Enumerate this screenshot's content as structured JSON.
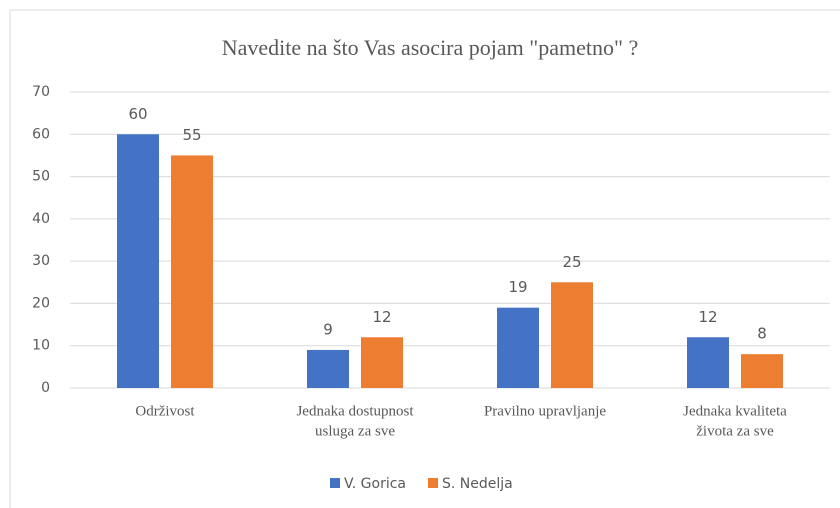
{
  "chart_data": {
    "type": "bar",
    "title": "Navedite na što Vas asocira pojam \"pametno\" ?",
    "categories": [
      [
        "Održivost"
      ],
      [
        "Jednaka dostupnost",
        "usluga za sve"
      ],
      [
        "Pravilno upravljanje"
      ],
      [
        "Jednaka kvaliteta",
        "života za sve"
      ]
    ],
    "series": [
      {
        "name": "V. Gorica",
        "color": "#4472c4",
        "values": [
          60,
          9,
          19,
          12
        ]
      },
      {
        "name": "S. Nedelja",
        "color": "#ed7d31",
        "values": [
          55,
          12,
          25,
          8
        ]
      }
    ],
    "ylim": [
      0,
      70
    ],
    "yticks": [
      0,
      10,
      20,
      30,
      40,
      50,
      60,
      70
    ],
    "grid": true,
    "legend": "bottom"
  }
}
